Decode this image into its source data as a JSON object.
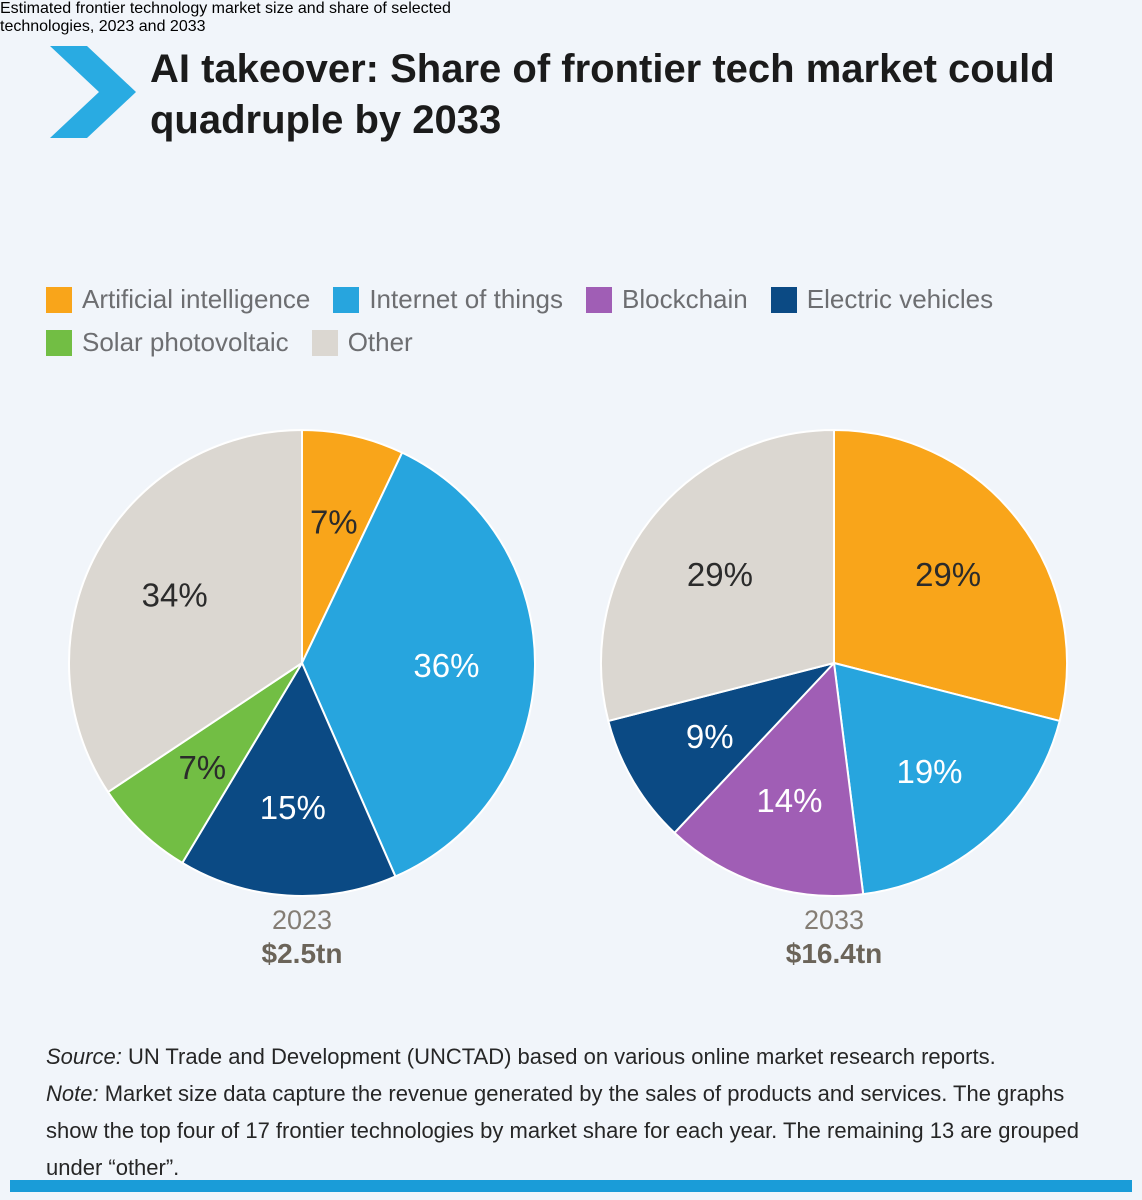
{
  "header": {
    "title_line1": "AI takeover: Share of frontier tech market could",
    "title_line2": "quadruple by 2033",
    "subtitle_line1": "Estimated frontier technology market size and share of selected",
    "subtitle_line2": "technologies, 2023 and 2033"
  },
  "legend": {
    "rows": [
      [
        {
          "label": "Artificial intelligence",
          "color": "#F9A51A"
        },
        {
          "label": "Internet of things",
          "color": "#27A5DE"
        },
        {
          "label": "Blockchain",
          "color": "#A05EB5"
        },
        {
          "label": "Electric vehicles",
          "color": "#0B4A84"
        }
      ],
      [
        {
          "label": "Solar photovoltaic",
          "color": "#72BE44"
        },
        {
          "label": "Other",
          "color": "#DBD7D1"
        }
      ]
    ]
  },
  "chart_data": [
    {
      "type": "pie",
      "title": "2023",
      "total_label": "$2.5tn",
      "unit": "percent of market",
      "start_angle": "top, clockwise",
      "slices": [
        {
          "label": "Artificial intelligence",
          "value": 7,
          "display": "7%",
          "color": "#F9A51A",
          "label_color": "#2B2B2B"
        },
        {
          "label": "Internet of things",
          "value": 36,
          "display": "36%",
          "color": "#27A5DE",
          "label_color": "#FFFFFF"
        },
        {
          "label": "Electric vehicles",
          "value": 15,
          "display": "15%",
          "color": "#0B4A84",
          "label_color": "#FFFFFF"
        },
        {
          "label": "Solar photovoltaic",
          "value": 7,
          "display": "7%",
          "color": "#72BE44",
          "label_color": "#2B2B2B"
        },
        {
          "label": "Other",
          "value": 34,
          "display": "34%",
          "color": "#DBD7D1",
          "label_color": "#2B2B2B"
        }
      ]
    },
    {
      "type": "pie",
      "title": "2033",
      "total_label": "$16.4tn",
      "unit": "percent of market",
      "start_angle": "top, clockwise",
      "slices": [
        {
          "label": "Artificial intelligence",
          "value": 29,
          "display": "29%",
          "color": "#F9A51A",
          "label_color": "#2B2B2B"
        },
        {
          "label": "Internet of things",
          "value": 19,
          "display": "19%",
          "color": "#27A5DE",
          "label_color": "#FFFFFF"
        },
        {
          "label": "Blockchain",
          "value": 14,
          "display": "14%",
          "color": "#A05EB5",
          "label_color": "#FFFFFF"
        },
        {
          "label": "Electric vehicles",
          "value": 9,
          "display": "9%",
          "color": "#0B4A84",
          "label_color": "#FFFFFF"
        },
        {
          "label": "Other",
          "value": 29,
          "display": "29%",
          "color": "#DBD7D1",
          "label_color": "#2B2B2B"
        }
      ]
    }
  ],
  "footer": {
    "source_label": "Source:",
    "source_text": " UN Trade and Development (UNCTAD) based on various online market research reports.",
    "note_label": "Note:",
    "note_text": " Market size data capture the revenue generated by the sales of products and services. The graphs show the top four of 17 frontier technologies by market share for each year. The remaining 13 are grouped under “other”."
  },
  "colors": {
    "background": "#F1F5FA",
    "chevron": "#29ABE2",
    "bottom_bar": "#1A9CD8",
    "legend_text": "#6D6E71",
    "title_text": "#1B1B1B",
    "caption_year": "#847D74",
    "caption_value": "#6B6459",
    "slice_border": "#FFFFFF"
  }
}
